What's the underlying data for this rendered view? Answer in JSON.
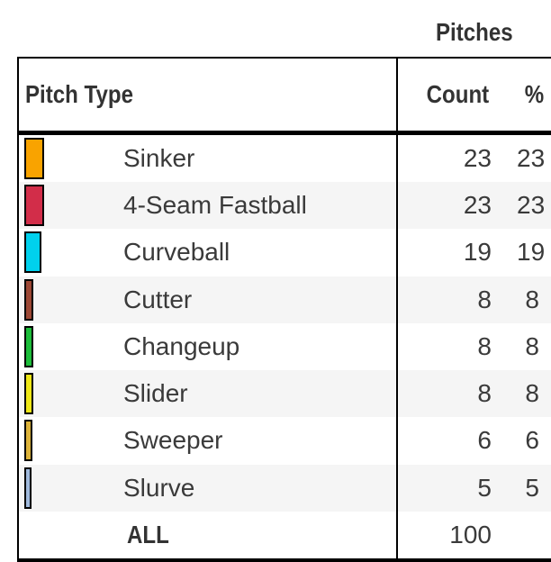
{
  "title": "Pitches",
  "header": {
    "pitch_type": "Pitch Type",
    "count": "Count",
    "pct": "%"
  },
  "rows": [
    {
      "label": "Sinker",
      "count": 23,
      "pct": 23,
      "color": "#F9A300"
    },
    {
      "label": "4-Seam Fastball",
      "count": 23,
      "pct": 23,
      "color": "#D22D49"
    },
    {
      "label": "Curveball",
      "count": 19,
      "pct": 19,
      "color": "#00D1ED"
    },
    {
      "label": "Cutter",
      "count": 8,
      "pct": 8,
      "color": "#9C4734"
    },
    {
      "label": "Changeup",
      "count": 8,
      "pct": 8,
      "color": "#1DBE3A"
    },
    {
      "label": "Slider",
      "count": 8,
      "pct": 8,
      "color": "#EEE716"
    },
    {
      "label": "Sweeper",
      "count": 6,
      "pct": 6,
      "color": "#DDB33A"
    },
    {
      "label": "Slurve",
      "count": 5,
      "pct": 5,
      "color": "#9FB9DC"
    }
  ],
  "total_row": {
    "label": "ALL",
    "count": 100,
    "pct": ""
  },
  "colors": {
    "border": "#000000",
    "text": "#3A3A3A",
    "header_text": "#333333",
    "stripe": "#F5F5F5",
    "background": "#FFFFFF"
  },
  "chart_data": {
    "type": "table",
    "title": "Pitches",
    "columns": [
      "Pitch Type",
      "Count",
      "%"
    ],
    "categories": [
      "Sinker",
      "4-Seam Fastball",
      "Curveball",
      "Cutter",
      "Changeup",
      "Slider",
      "Sweeper",
      "Slurve"
    ],
    "series": [
      {
        "name": "Count",
        "values": [
          23,
          23,
          19,
          8,
          8,
          8,
          6,
          5
        ]
      },
      {
        "name": "%",
        "values": [
          23,
          23,
          19,
          8,
          8,
          8,
          6,
          5
        ]
      }
    ],
    "total": {
      "label": "ALL",
      "count": 100
    },
    "swatch_colors": [
      "#F9A300",
      "#D22D49",
      "#00D1ED",
      "#9C4734",
      "#1DBE3A",
      "#EEE716",
      "#DDB33A",
      "#9FB9DC"
    ],
    "layout": {
      "striped": true,
      "swatch_width_proportional_to_count": true
    }
  }
}
